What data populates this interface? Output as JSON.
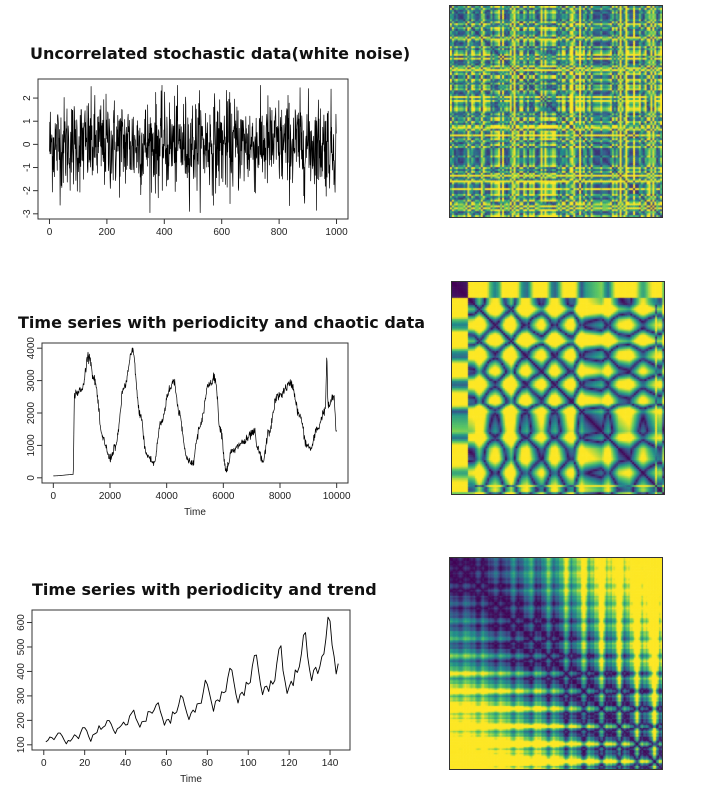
{
  "palette": {
    "dark": "#3b0f58",
    "mid": "#2a7b8e",
    "teal": "#21918c",
    "light": "#5ec962",
    "bright": "#fde725"
  },
  "chart_data": [
    {
      "type": "line",
      "title": "Uncorrelated stochastic data(white noise)",
      "xlabel": "",
      "ylabel": "",
      "xlim": [
        0,
        1000
      ],
      "ylim": [
        -3,
        2.6
      ],
      "x_ticks": [
        0,
        200,
        400,
        600,
        800,
        1000
      ],
      "y_ticks": [
        -3,
        -2,
        -1,
        0,
        1,
        2
      ],
      "series": [
        {
          "description": "white noise, n=1000, mean 0, sd ~1",
          "n": 1000,
          "mean": 0,
          "sd": 1
        }
      ]
    },
    {
      "type": "line",
      "title": "Time series with periodicity and chaotic data",
      "xlabel": "Time",
      "ylabel": "",
      "xlim": [
        0,
        10000
      ],
      "ylim": [
        0,
        4000
      ],
      "x_ticks": [
        0,
        2000,
        4000,
        6000,
        8000,
        10000
      ],
      "y_ticks": [
        0,
        1000,
        2000,
        3000,
        4000
      ],
      "series": [
        {
          "keypoints": [
            [
              0,
              60
            ],
            [
              700,
              100
            ],
            [
              750,
              2600
            ],
            [
              1000,
              2700
            ],
            [
              1250,
              3800
            ],
            [
              1450,
              3000
            ],
            [
              1750,
              1200
            ],
            [
              2000,
              600
            ],
            [
              2200,
              1000
            ],
            [
              2500,
              2800
            ],
            [
              2800,
              3900
            ],
            [
              3050,
              2000
            ],
            [
              3300,
              700
            ],
            [
              3550,
              450
            ],
            [
              3800,
              1700
            ],
            [
              4100,
              2700
            ],
            [
              4250,
              3000
            ],
            [
              4450,
              2000
            ],
            [
              4700,
              650
            ],
            [
              4900,
              400
            ],
            [
              5150,
              1500
            ],
            [
              5500,
              2900
            ],
            [
              5700,
              3100
            ],
            [
              5900,
              1500
            ],
            [
              6100,
              250
            ],
            [
              6300,
              800
            ],
            [
              6700,
              1100
            ],
            [
              7100,
              1400
            ],
            [
              7200,
              900
            ],
            [
              7400,
              500
            ],
            [
              7600,
              1400
            ],
            [
              7900,
              2500
            ],
            [
              8400,
              2900
            ],
            [
              8700,
              1900
            ],
            [
              8950,
              1000
            ],
            [
              9100,
              900
            ],
            [
              9300,
              1500
            ],
            [
              9600,
              2100
            ],
            [
              9650,
              3600
            ],
            [
              9700,
              2200
            ],
            [
              9900,
              2500
            ],
            [
              10000,
              1300
            ]
          ]
        }
      ]
    },
    {
      "type": "line",
      "title": "Time series with periodicity and trend",
      "xlabel": "Time",
      "ylabel": "",
      "xlim": [
        0,
        144
      ],
      "ylim": [
        100,
        630
      ],
      "x_ticks": [
        0,
        20,
        40,
        60,
        80,
        100,
        120,
        140
      ],
      "y_ticks": [
        100,
        200,
        300,
        400,
        500,
        600
      ],
      "series": [
        {
          "values": [
            112,
            118,
            132,
            129,
            121,
            135,
            148,
            148,
            136,
            119,
            104,
            118,
            115,
            126,
            141,
            135,
            125,
            149,
            170,
            170,
            158,
            133,
            114,
            140,
            145,
            150,
            178,
            163,
            172,
            178,
            199,
            199,
            184,
            162,
            146,
            166,
            171,
            180,
            193,
            181,
            183,
            218,
            230,
            242,
            209,
            191,
            172,
            194,
            196,
            196,
            236,
            235,
            229,
            243,
            264,
            272,
            237,
            211,
            180,
            201,
            204,
            188,
            235,
            227,
            234,
            264,
            302,
            293,
            259,
            229,
            203,
            229,
            242,
            233,
            267,
            269,
            270,
            315,
            364,
            347,
            312,
            274,
            237,
            278,
            284,
            277,
            317,
            313,
            318,
            374,
            413,
            405,
            355,
            306,
            271,
            306,
            315,
            301,
            356,
            348,
            355,
            422,
            465,
            467,
            404,
            347,
            305,
            336,
            340,
            318,
            362,
            348,
            363,
            435,
            491,
            505,
            404,
            359,
            310,
            337,
            360,
            342,
            406,
            396,
            420,
            472,
            548,
            559,
            463,
            407,
            362,
            405,
            417,
            391,
            419,
            461,
            472,
            535,
            622,
            606,
            508,
            461,
            390,
            432
          ]
        }
      ]
    }
  ],
  "recurrence_plots": [
    {
      "source": "white noise",
      "pattern": "noise"
    },
    {
      "source": "periodic and chaotic",
      "pattern": "blocks"
    },
    {
      "source": "periodic and trend",
      "pattern": "trend"
    }
  ]
}
